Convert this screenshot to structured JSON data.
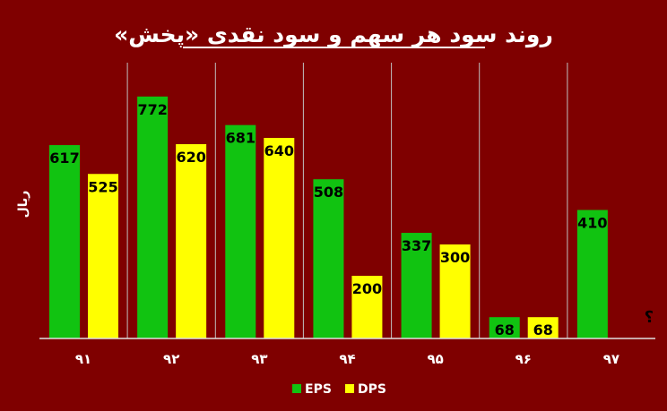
{
  "chart_data": {
    "type": "bar",
    "title": "روند سود هر سهم و سود نقدی «پخش»",
    "ylabel": "ریال",
    "categories": [
      "۹۱",
      "۹۲",
      "۹۳",
      "۹۴",
      "۹۵",
      "۹۶",
      "۹۷"
    ],
    "series": [
      {
        "name": "EPS",
        "color": "#11c311",
        "values": [
          617,
          772,
          681,
          508,
          337,
          68,
          410
        ]
      },
      {
        "name": "DPS",
        "color": "#ffff00",
        "values": [
          525,
          620,
          640,
          200,
          300,
          68,
          null
        ]
      }
    ],
    "missing_label": "؟",
    "ylim": [
      0,
      840
    ],
    "grid": false,
    "legend_position": "bottom",
    "colors": {
      "background": "#7f0000",
      "text": "#ffffff",
      "label": "#000000"
    }
  }
}
